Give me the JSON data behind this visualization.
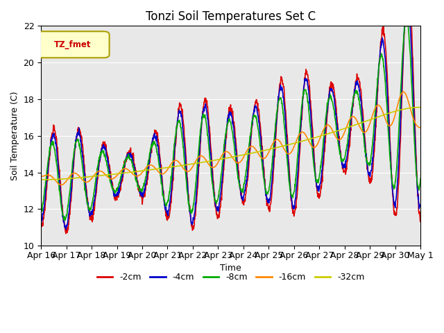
{
  "title": "Tonzi Soil Temperatures Set C",
  "xlabel": "Time",
  "ylabel": "Soil Temperature (C)",
  "ylim": [
    10,
    22
  ],
  "legend_label": "TZ_fmet",
  "series": {
    "-2cm": {
      "color": "#dd0000",
      "lw": 1.2
    },
    "-4cm": {
      "color": "#0000cc",
      "lw": 1.2
    },
    "-8cm": {
      "color": "#00aa00",
      "lw": 1.2
    },
    "-16cm": {
      "color": "#ff8800",
      "lw": 1.2
    },
    "-32cm": {
      "color": "#cccc00",
      "lw": 1.2
    }
  },
  "xtick_labels": [
    "Apr 16",
    "Apr 17",
    "Apr 18",
    "Apr 19",
    "Apr 20",
    "Apr 21",
    "Apr 22",
    "Apr 23",
    "Apr 24",
    "Apr 25",
    "Apr 26",
    "Apr 27",
    "Apr 28",
    "Apr 29",
    "Apr 30",
    "May 1"
  ],
  "plot_bg": "#e8e8e8",
  "fig_bg": "#ffffff"
}
